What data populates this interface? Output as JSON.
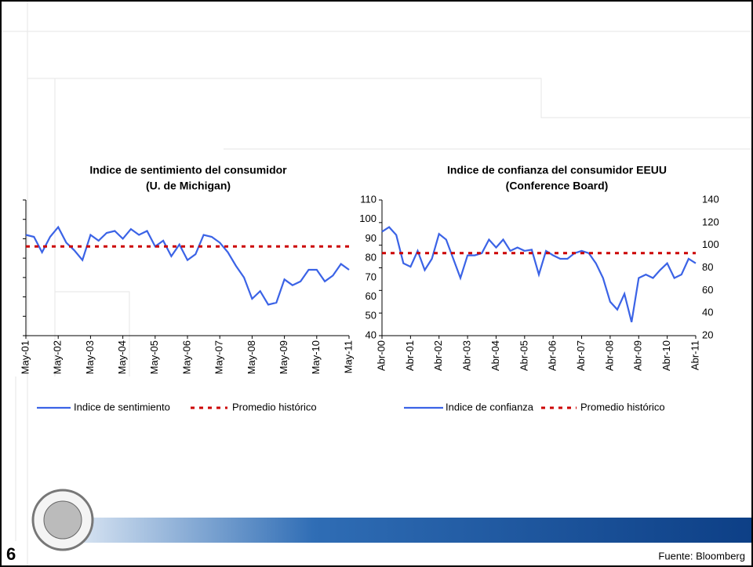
{
  "slide": {
    "number": "6",
    "source": "Fuente: Bloomberg"
  },
  "chart_data": [
    {
      "type": "line",
      "title": "Indice de sentimiento del consumidor",
      "subtitle": "(U. de Michigan)",
      "categories": [
        "May-01",
        null,
        null,
        null,
        "May-02",
        null,
        null,
        null,
        "May-03",
        null,
        null,
        null,
        "May-04",
        null,
        null,
        null,
        "May-05",
        null,
        null,
        null,
        "May-06",
        null,
        null,
        null,
        "May-07",
        null,
        null,
        null,
        "May-08",
        null,
        null,
        null,
        "May-09",
        null,
        null,
        null,
        "May-10",
        null,
        null,
        null,
        "May-11"
      ],
      "series": [
        {
          "name": "Indice de sentimiento",
          "color": "#3b63e6",
          "dash": false,
          "values": [
            92,
            91,
            83,
            91,
            96,
            88,
            84,
            79,
            92,
            89,
            93,
            94,
            90,
            95,
            92,
            94,
            86,
            89,
            81,
            87,
            79,
            82,
            92,
            91,
            88,
            83,
            76,
            70,
            59,
            63,
            56,
            57,
            69,
            66,
            68,
            74,
            74,
            68,
            71,
            77,
            74
          ]
        },
        {
          "name": "Promedio histórico",
          "color": "#cc0000",
          "dash": true,
          "values": [
            86,
            86,
            86,
            86,
            86,
            86,
            86,
            86,
            86,
            86,
            86,
            86,
            86,
            86,
            86,
            86,
            86,
            86,
            86,
            86,
            86,
            86,
            86,
            86,
            86,
            86,
            86,
            86,
            86,
            86,
            86,
            86,
            86,
            86,
            86,
            86,
            86,
            86,
            86,
            86,
            86
          ]
        }
      ],
      "ylim": [
        40,
        110
      ],
      "yticks": [
        40,
        50,
        60,
        70,
        80,
        90,
        100,
        110
      ]
    },
    {
      "type": "line",
      "title": "Indice de confianza del consumidor EEUU",
      "subtitle": "(Conference Board)",
      "categories": [
        "Abr-00",
        null,
        null,
        null,
        "Abr-01",
        null,
        null,
        null,
        "Abr-02",
        null,
        null,
        null,
        "Abr-03",
        null,
        null,
        null,
        "Abr-04",
        null,
        null,
        null,
        "Abr-05",
        null,
        null,
        null,
        "Abr-06",
        null,
        null,
        null,
        "Abr-07",
        null,
        null,
        null,
        "Abr-08",
        null,
        null,
        null,
        "Abr-09",
        null,
        null,
        null,
        "Abr-10",
        null,
        null,
        null,
        "Abr-11"
      ],
      "series": [
        {
          "name": "Indice de confianza",
          "color": "#3b63e6",
          "dash": false,
          "values": [
            112,
            116,
            109,
            84,
            81,
            95,
            78,
            88,
            110,
            105,
            88,
            71,
            91,
            91,
            93,
            105,
            98,
            105,
            95,
            98,
            95,
            96,
            74,
            95,
            91,
            88,
            88,
            93,
            95,
            93,
            84,
            71,
            50,
            43,
            57,
            32,
            71,
            74,
            71,
            78,
            84,
            71,
            74,
            88,
            84
          ]
        },
        {
          "name": "Promedio histórico",
          "color": "#cc0000",
          "dash": true,
          "values": [
            93,
            93,
            93,
            93,
            93,
            93,
            93,
            93,
            93,
            93,
            93,
            93,
            93,
            93,
            93,
            93,
            93,
            93,
            93,
            93,
            93,
            93,
            93,
            93,
            93,
            93,
            93,
            93,
            93,
            93,
            93,
            93,
            93,
            93,
            93,
            93,
            93,
            93,
            93,
            93,
            93,
            93,
            93,
            93,
            93
          ]
        }
      ],
      "ylim": [
        20,
        140
      ],
      "yticks": [
        20,
        40,
        60,
        80,
        100,
        120,
        140
      ]
    }
  ]
}
